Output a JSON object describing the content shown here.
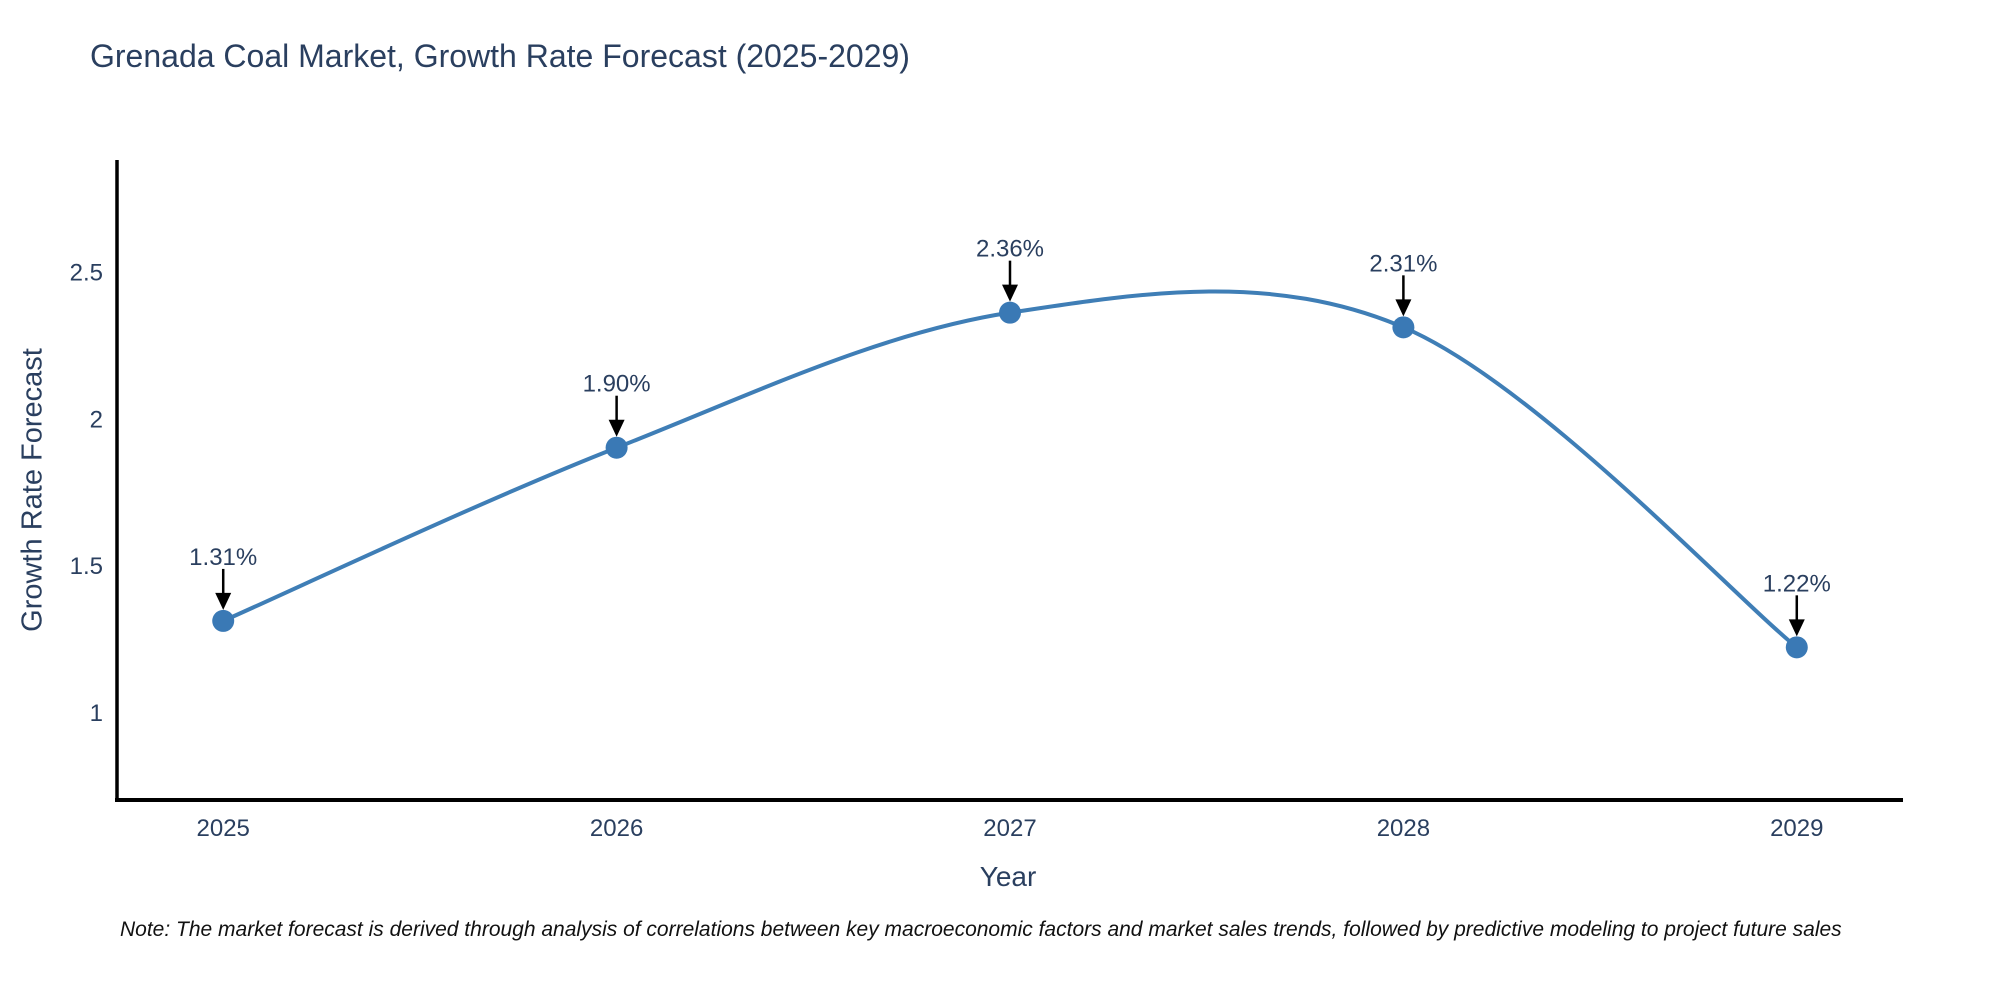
{
  "title": "Grenada Coal Market, Growth Rate Forecast (2025-2029)",
  "note": "Note: The market forecast is derived through analysis of correlations between key macroeconomic factors and market sales trends, followed by predictive modeling to project future sales",
  "chart_data": {
    "type": "line",
    "title": "Grenada Coal Market, Growth Rate Forecast (2025-2029)",
    "xlabel": "Year",
    "ylabel": "Growth Rate Forecast",
    "categories": [
      "2025",
      "2026",
      "2027",
      "2028",
      "2029"
    ],
    "values": [
      1.31,
      1.9,
      2.36,
      2.31,
      1.22
    ],
    "point_labels": [
      "1.31%",
      "1.90%",
      "2.36%",
      "2.31%",
      "1.22%"
    ],
    "x_numeric": [
      2025,
      2026,
      2027,
      2028,
      2029
    ],
    "xlim": [
      2024.73,
      2029.27
    ],
    "ylim": [
      0.7,
      2.88
    ],
    "y_ticks": [
      1,
      1.5,
      2,
      2.5
    ],
    "y_tick_labels": [
      "1",
      "1.5",
      "2",
      "2.5"
    ],
    "line_shape": "spline",
    "grid": false,
    "legend_position": "none",
    "colors": {
      "line": "#3f7eb6",
      "marker": "#3a79b5",
      "axis": "#000000",
      "text": "#2a3f5f",
      "arrow": "#000000"
    }
  }
}
